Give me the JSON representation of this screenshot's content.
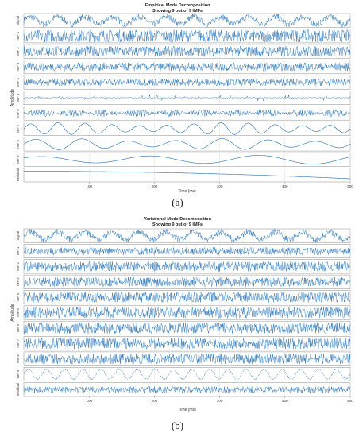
{
  "figure": {
    "colors": {
      "signal": "#1f6fb5",
      "axis": "#8c8c8c",
      "grid": "#d8d8d8",
      "text": "#333333"
    }
  },
  "chart_data": [
    {
      "type": "line",
      "panel_label": "(a)",
      "title": "Empirical Mode Decomposition",
      "subtitle": "Showing 9 out of 9 IMFs",
      "xlabel": "Time (ms)",
      "ylabel": "Amplitude",
      "xlim": [
        0,
        500
      ],
      "xticks": [
        "100",
        "200",
        "300",
        "400",
        "500"
      ],
      "grid": true,
      "rows": [
        {
          "label": "Signal",
          "kind": "signal",
          "amp": 1.0
        },
        {
          "label": "IMF 1",
          "kind": "noise",
          "amp": 0.9
        },
        {
          "label": "IMF 2",
          "kind": "noise",
          "amp": 0.75
        },
        {
          "label": "IMF 3",
          "kind": "noise",
          "amp": 0.6
        },
        {
          "label": "IMF 4",
          "kind": "noise",
          "amp": 0.5
        },
        {
          "label": "IMF 5",
          "kind": "sparse",
          "amp": 0.5
        },
        {
          "label": "IMF 6",
          "kind": "burst",
          "amp": 0.55
        },
        {
          "label": "IMF 7",
          "kind": "sine",
          "cycles": 12,
          "amp": 0.85
        },
        {
          "label": "IMF 8",
          "kind": "sine",
          "cycles": 7,
          "amp": 0.8
        },
        {
          "label": "IMF 9",
          "kind": "slow",
          "cycles": 3,
          "amp": 0.7
        },
        {
          "label": "Residual",
          "kind": "trend",
          "amp": 0.6
        }
      ]
    },
    {
      "type": "line",
      "panel_label": "(b)",
      "title": "Variational Mode Decomposition",
      "subtitle": "Showing 9 out of 9 IMFs",
      "xlabel": "Time (ms)",
      "ylabel": "Amplitude",
      "xlim": [
        0,
        500
      ],
      "xticks": [
        "100",
        "200",
        "300",
        "400",
        "500"
      ],
      "grid": true,
      "rows": [
        {
          "label": "Signal",
          "kind": "signal",
          "amp": 1.0
        },
        {
          "label": "IMF 1",
          "kind": "noise",
          "amp": 0.55
        },
        {
          "label": "IMF 2",
          "kind": "noise",
          "amp": 0.7
        },
        {
          "label": "IMF 3",
          "kind": "noise",
          "amp": 0.7
        },
        {
          "label": "IMF 4",
          "kind": "noise",
          "amp": 0.75
        },
        {
          "label": "IMF 5",
          "kind": "noise",
          "amp": 0.8
        },
        {
          "label": "IMF 6",
          "kind": "noise",
          "amp": 0.8
        },
        {
          "label": "IMF 7",
          "kind": "noise",
          "amp": 0.8
        },
        {
          "label": "IMF 8",
          "kind": "noise",
          "amp": 0.75
        },
        {
          "label": "IMF 9",
          "kind": "dashsine",
          "cycles": 18,
          "amp": 0.85
        },
        {
          "label": "Residual",
          "kind": "noise",
          "amp": 0.45
        }
      ]
    }
  ]
}
